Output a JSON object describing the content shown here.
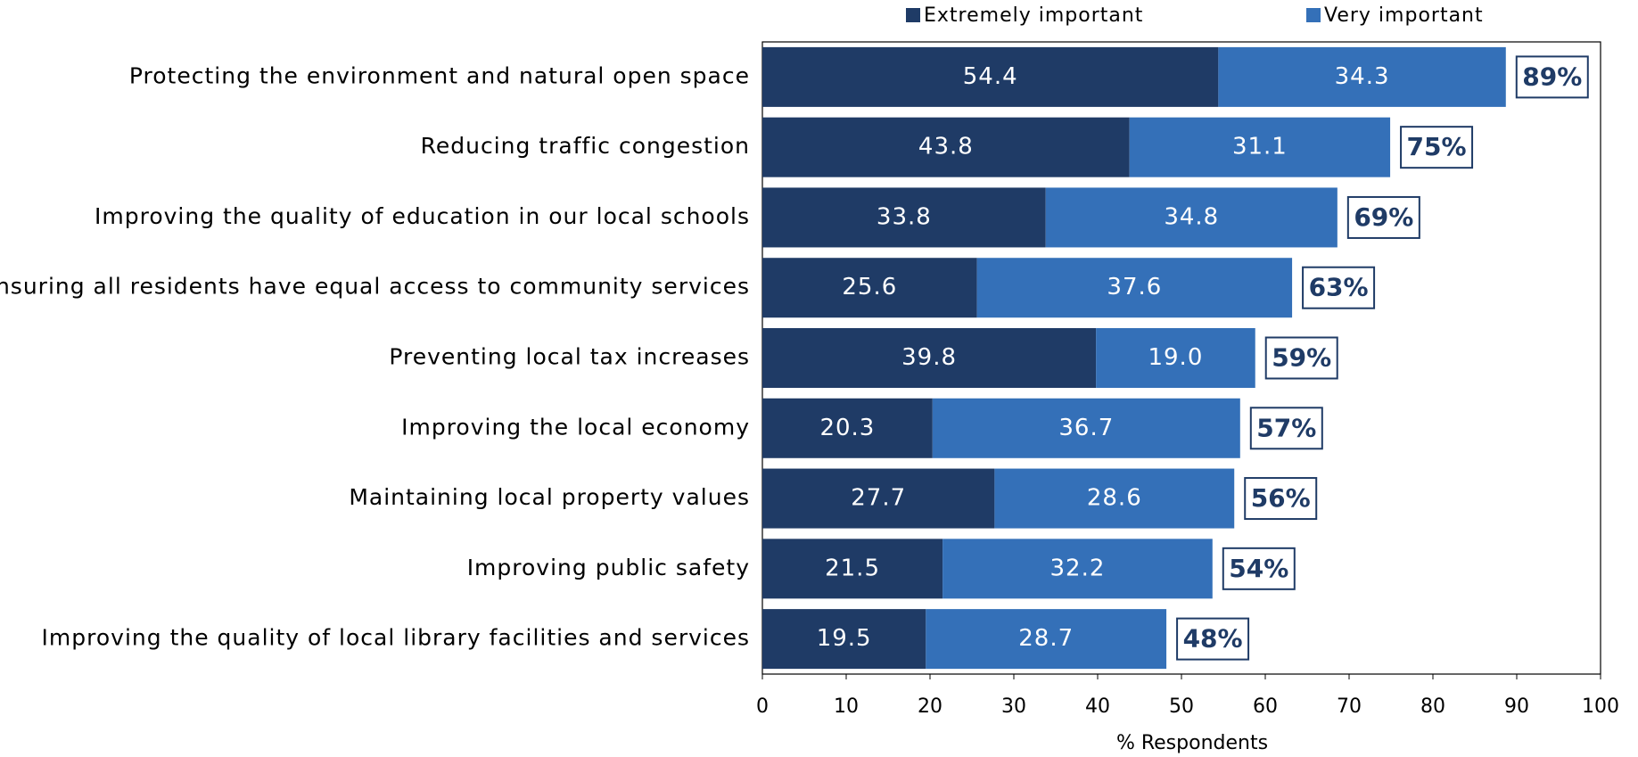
{
  "chart_data": {
    "type": "stacked_barh",
    "categories": [
      "Protecting the environment and natural open space",
      "Reducing traffic congestion",
      "Improving the quality of education in our local schools",
      "Ensuring all residents have equal access to community services",
      "Preventing local tax increases",
      "Improving the local economy",
      "Maintaining local property values",
      "Improving public safety",
      "Improving the quality of local library facilities and services"
    ],
    "series": [
      {
        "name": "Extremely important",
        "color": "#1f3b66",
        "values": [
          54.4,
          43.8,
          33.8,
          25.6,
          39.8,
          20.3,
          27.7,
          21.5,
          19.5
        ],
        "value_labels": [
          "54.4",
          "43.8",
          "33.8",
          "25.6",
          "39.8",
          "20.3",
          "27.7",
          "21.5",
          "19.5"
        ]
      },
      {
        "name": "Very important",
        "color": "#3470b8",
        "values": [
          34.3,
          31.1,
          34.8,
          37.6,
          19.0,
          36.7,
          28.6,
          32.2,
          28.7
        ],
        "value_labels": [
          "34.3",
          "31.1",
          "34.8",
          "37.6",
          "19.0",
          "36.7",
          "28.6",
          "32.2",
          "28.7"
        ]
      }
    ],
    "totals": [
      89,
      75,
      69,
      63,
      59,
      57,
      56,
      54,
      48
    ],
    "total_labels": [
      "89%",
      "75%",
      "69%",
      "63%",
      "59%",
      "57%",
      "56%",
      "54%",
      "48%"
    ],
    "xlabel": "% Respondents",
    "xlim": [
      0,
      100
    ],
    "xticks": [
      0,
      10,
      20,
      30,
      40,
      50,
      60,
      70,
      80,
      90,
      100
    ],
    "legend": "top"
  }
}
